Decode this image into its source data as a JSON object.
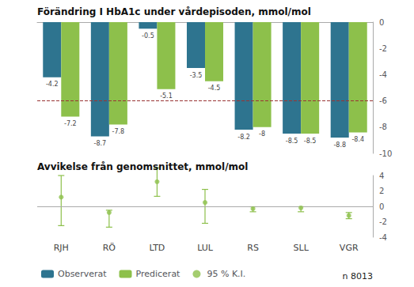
{
  "chart_data": [
    {
      "type": "bar",
      "title": "Förändring I HbA1c under vårdepisoden, mmol/mol",
      "categories": [
        "RJH",
        "RÖ",
        "LTD",
        "LUL",
        "RS",
        "SLL",
        "VGR"
      ],
      "series": [
        {
          "name": "Observerat",
          "color": "#2e748f",
          "values": [
            -4.2,
            -8.7,
            -0.5,
            -3.5,
            -8.2,
            -8.5,
            -8.8
          ]
        },
        {
          "name": "Predicerat",
          "color": "#8dc04b",
          "values": [
            -7.2,
            -7.8,
            -5.1,
            -4.5,
            -8.0,
            -8.5,
            -8.4
          ]
        }
      ],
      "reference_line": {
        "value": -6,
        "color": "#993333",
        "line_style": "dashed"
      },
      "ylim": [
        -10,
        0
      ],
      "yticks": [
        0,
        -2,
        -4,
        -6,
        -8,
        -10
      ],
      "data_labels": true,
      "grid": false,
      "tick_labels": "y",
      "legend": "lower left"
    },
    {
      "type": "scatter",
      "title": "Avvikelse från genomsnittet, mmol/mol",
      "categories": [
        "RJH",
        "RÖ",
        "LTD",
        "LUL",
        "RS",
        "SLL",
        "VGR"
      ],
      "series": [
        {
          "name": "95 % K.I.",
          "color": "#8dc04b",
          "marker": "circle",
          "values": [
            1.2,
            -0.8,
            3.2,
            0.5,
            -0.3,
            -0.2,
            -1.2
          ],
          "ci_lower": [
            -2.5,
            -2.7,
            1.3,
            -2.2,
            -0.7,
            -0.7,
            -1.6
          ],
          "ci_upper": [
            4.0,
            -0.5,
            5.0,
            2.2,
            -0.05,
            -0.05,
            -0.8
          ]
        }
      ],
      "reference_line": {
        "value": 0,
        "color": "#aaaaaa",
        "line_style": "solid"
      },
      "ylim": [
        -4,
        4
      ],
      "yticks": [
        -4,
        -2,
        0,
        2,
        4
      ],
      "grid": false,
      "annotation": "n 8013"
    }
  ]
}
